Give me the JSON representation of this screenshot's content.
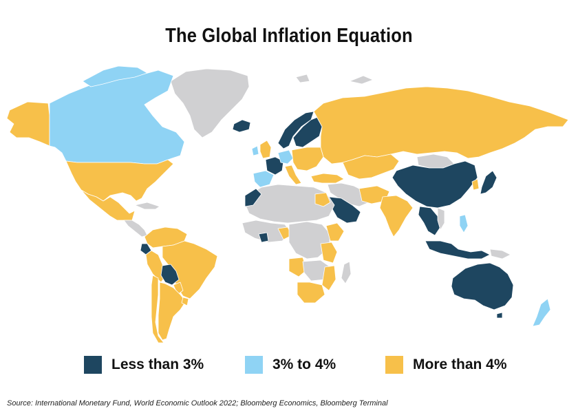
{
  "title": "The Global Inflation Equation",
  "colors": {
    "low": "#1e4660",
    "mid": "#8fd3f4",
    "high": "#f7c04a",
    "nodata": "#d0d0d2",
    "background": "#ffffff"
  },
  "legend": [
    {
      "label": "Less than 3%",
      "color_key": "low"
    },
    {
      "label": "3% to 4%",
      "color_key": "mid"
    },
    {
      "label": "More than 4%",
      "color_key": "high"
    }
  ],
  "source": "Source: International Monetary Fund, World Economic Outlook 2022; Bloomberg Economics, Bloomberg Terminal"
}
